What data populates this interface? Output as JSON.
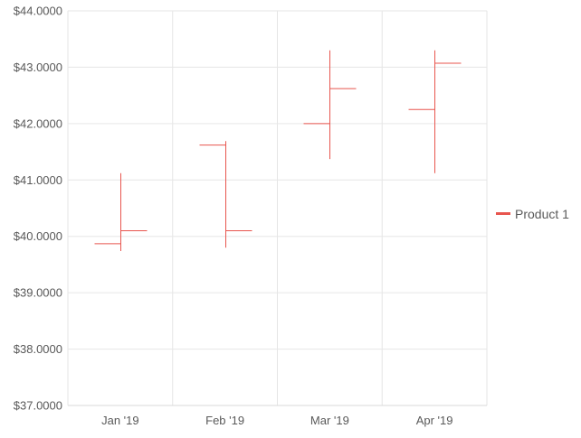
{
  "chart_data": {
    "type": "ohlc",
    "categories": [
      "Jan '19",
      "Feb '19",
      "Mar '19",
      "Apr '19"
    ],
    "series": [
      {
        "name": "Product 1",
        "color": "#e8554e",
        "ohlc": [
          {
            "open": 39.87,
            "high": 41.12,
            "low": 39.74,
            "close": 40.1
          },
          {
            "open": 41.62,
            "high": 41.69,
            "low": 39.8,
            "close": 40.1
          },
          {
            "open": 42.0,
            "high": 43.3,
            "low": 41.37,
            "close": 42.62
          },
          {
            "open": 42.25,
            "high": 43.3,
            "low": 41.12,
            "close": 43.07
          }
        ]
      }
    ],
    "y_ticks": [
      "$37.0000",
      "$38.0000",
      "$39.0000",
      "$40.0000",
      "$41.0000",
      "$42.0000",
      "$43.0000",
      "$44.0000"
    ],
    "ylim": [
      37,
      44
    ],
    "grid": true,
    "legend": "right"
  }
}
